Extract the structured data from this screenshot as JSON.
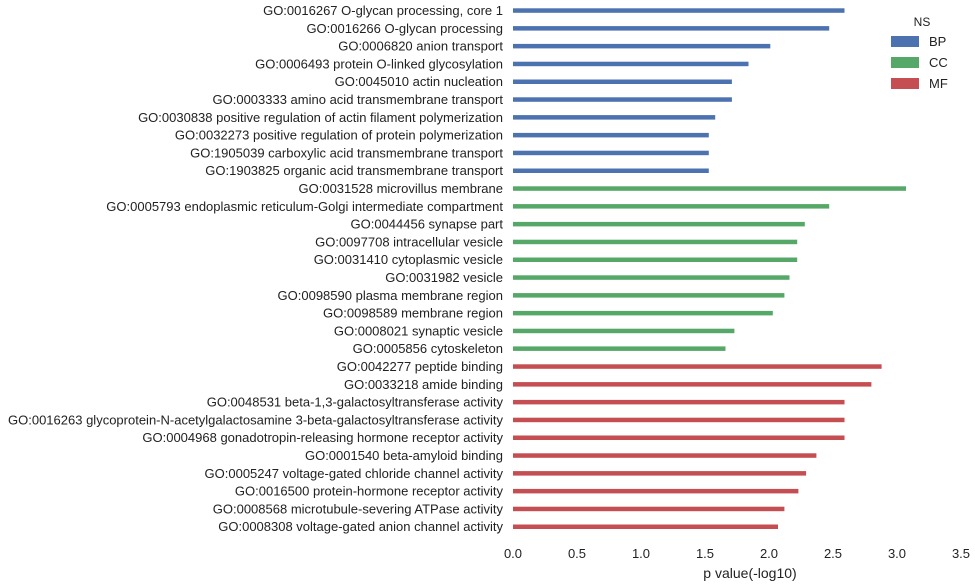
{
  "chart_data": {
    "type": "bar",
    "orientation": "horizontal",
    "xlabel": "p value(-log10)",
    "xlim": [
      0,
      3.5
    ],
    "xticks": [
      "0.0",
      "0.5",
      "1.0",
      "1.5",
      "2.0",
      "2.5",
      "3.0",
      "3.5"
    ],
    "grid": false,
    "legend": {
      "title": "NS",
      "placement": "top-right",
      "entries": [
        {
          "name": "BP",
          "color": "#4c72b0"
        },
        {
          "name": "CC",
          "color": "#55a868"
        },
        {
          "name": "MF",
          "color": "#c44e52"
        }
      ]
    },
    "categories": [
      {
        "label": "GO:0016267 O-glycan processing, core 1",
        "value": 2.59,
        "group": "BP"
      },
      {
        "label": "GO:0016266 O-glycan processing",
        "value": 2.47,
        "group": "BP"
      },
      {
        "label": "GO:0006820 anion transport",
        "value": 2.01,
        "group": "BP"
      },
      {
        "label": "GO:0006493 protein O-linked glycosylation",
        "value": 1.84,
        "group": "BP"
      },
      {
        "label": "GO:0045010 actin nucleation",
        "value": 1.71,
        "group": "BP"
      },
      {
        "label": "GO:0003333 amino acid transmembrane transport",
        "value": 1.71,
        "group": "BP"
      },
      {
        "label": "GO:0030838 positive regulation of actin filament polymerization",
        "value": 1.58,
        "group": "BP"
      },
      {
        "label": "GO:0032273 positive regulation of protein polymerization",
        "value": 1.53,
        "group": "BP"
      },
      {
        "label": "GO:1905039 carboxylic acid transmembrane transport",
        "value": 1.53,
        "group": "BP"
      },
      {
        "label": "GO:1903825 organic acid transmembrane transport",
        "value": 1.53,
        "group": "BP"
      },
      {
        "label": "GO:0031528 microvillus membrane",
        "value": 3.07,
        "group": "CC"
      },
      {
        "label": "GO:0005793 endoplasmic reticulum-Golgi intermediate compartment",
        "value": 2.47,
        "group": "CC"
      },
      {
        "label": "GO:0044456 synapse part",
        "value": 2.28,
        "group": "CC"
      },
      {
        "label": "GO:0097708 intracellular vesicle",
        "value": 2.22,
        "group": "CC"
      },
      {
        "label": "GO:0031410 cytoplasmic vesicle",
        "value": 2.22,
        "group": "CC"
      },
      {
        "label": "GO:0031982 vesicle",
        "value": 2.16,
        "group": "CC"
      },
      {
        "label": "GO:0098590 plasma membrane region",
        "value": 2.12,
        "group": "CC"
      },
      {
        "label": "GO:0098589 membrane region",
        "value": 2.03,
        "group": "CC"
      },
      {
        "label": "GO:0008021 synaptic vesicle",
        "value": 1.73,
        "group": "CC"
      },
      {
        "label": "GO:0005856 cytoskeleton",
        "value": 1.66,
        "group": "CC"
      },
      {
        "label": "GO:0042277 peptide binding",
        "value": 2.88,
        "group": "MF"
      },
      {
        "label": "GO:0033218 amide binding",
        "value": 2.8,
        "group": "MF"
      },
      {
        "label": "GO:0048531 beta-1,3-galactosyltransferase activity",
        "value": 2.59,
        "group": "MF"
      },
      {
        "label": "GO:0016263 glycoprotein-N-acetylgalactosamine 3-beta-galactosyltransferase activity",
        "value": 2.59,
        "group": "MF"
      },
      {
        "label": "GO:0004968 gonadotropin-releasing hormone receptor activity",
        "value": 2.59,
        "group": "MF"
      },
      {
        "label": "GO:0001540 beta-amyloid binding",
        "value": 2.37,
        "group": "MF"
      },
      {
        "label": "GO:0005247 voltage-gated chloride channel activity",
        "value": 2.29,
        "group": "MF"
      },
      {
        "label": "GO:0016500 protein-hormone receptor activity",
        "value": 2.23,
        "group": "MF"
      },
      {
        "label": "GO:0008568 microtubule-severing ATPase activity",
        "value": 2.12,
        "group": "MF"
      },
      {
        "label": "GO:0008308 voltage-gated anion channel activity",
        "value": 2.07,
        "group": "MF"
      }
    ]
  }
}
